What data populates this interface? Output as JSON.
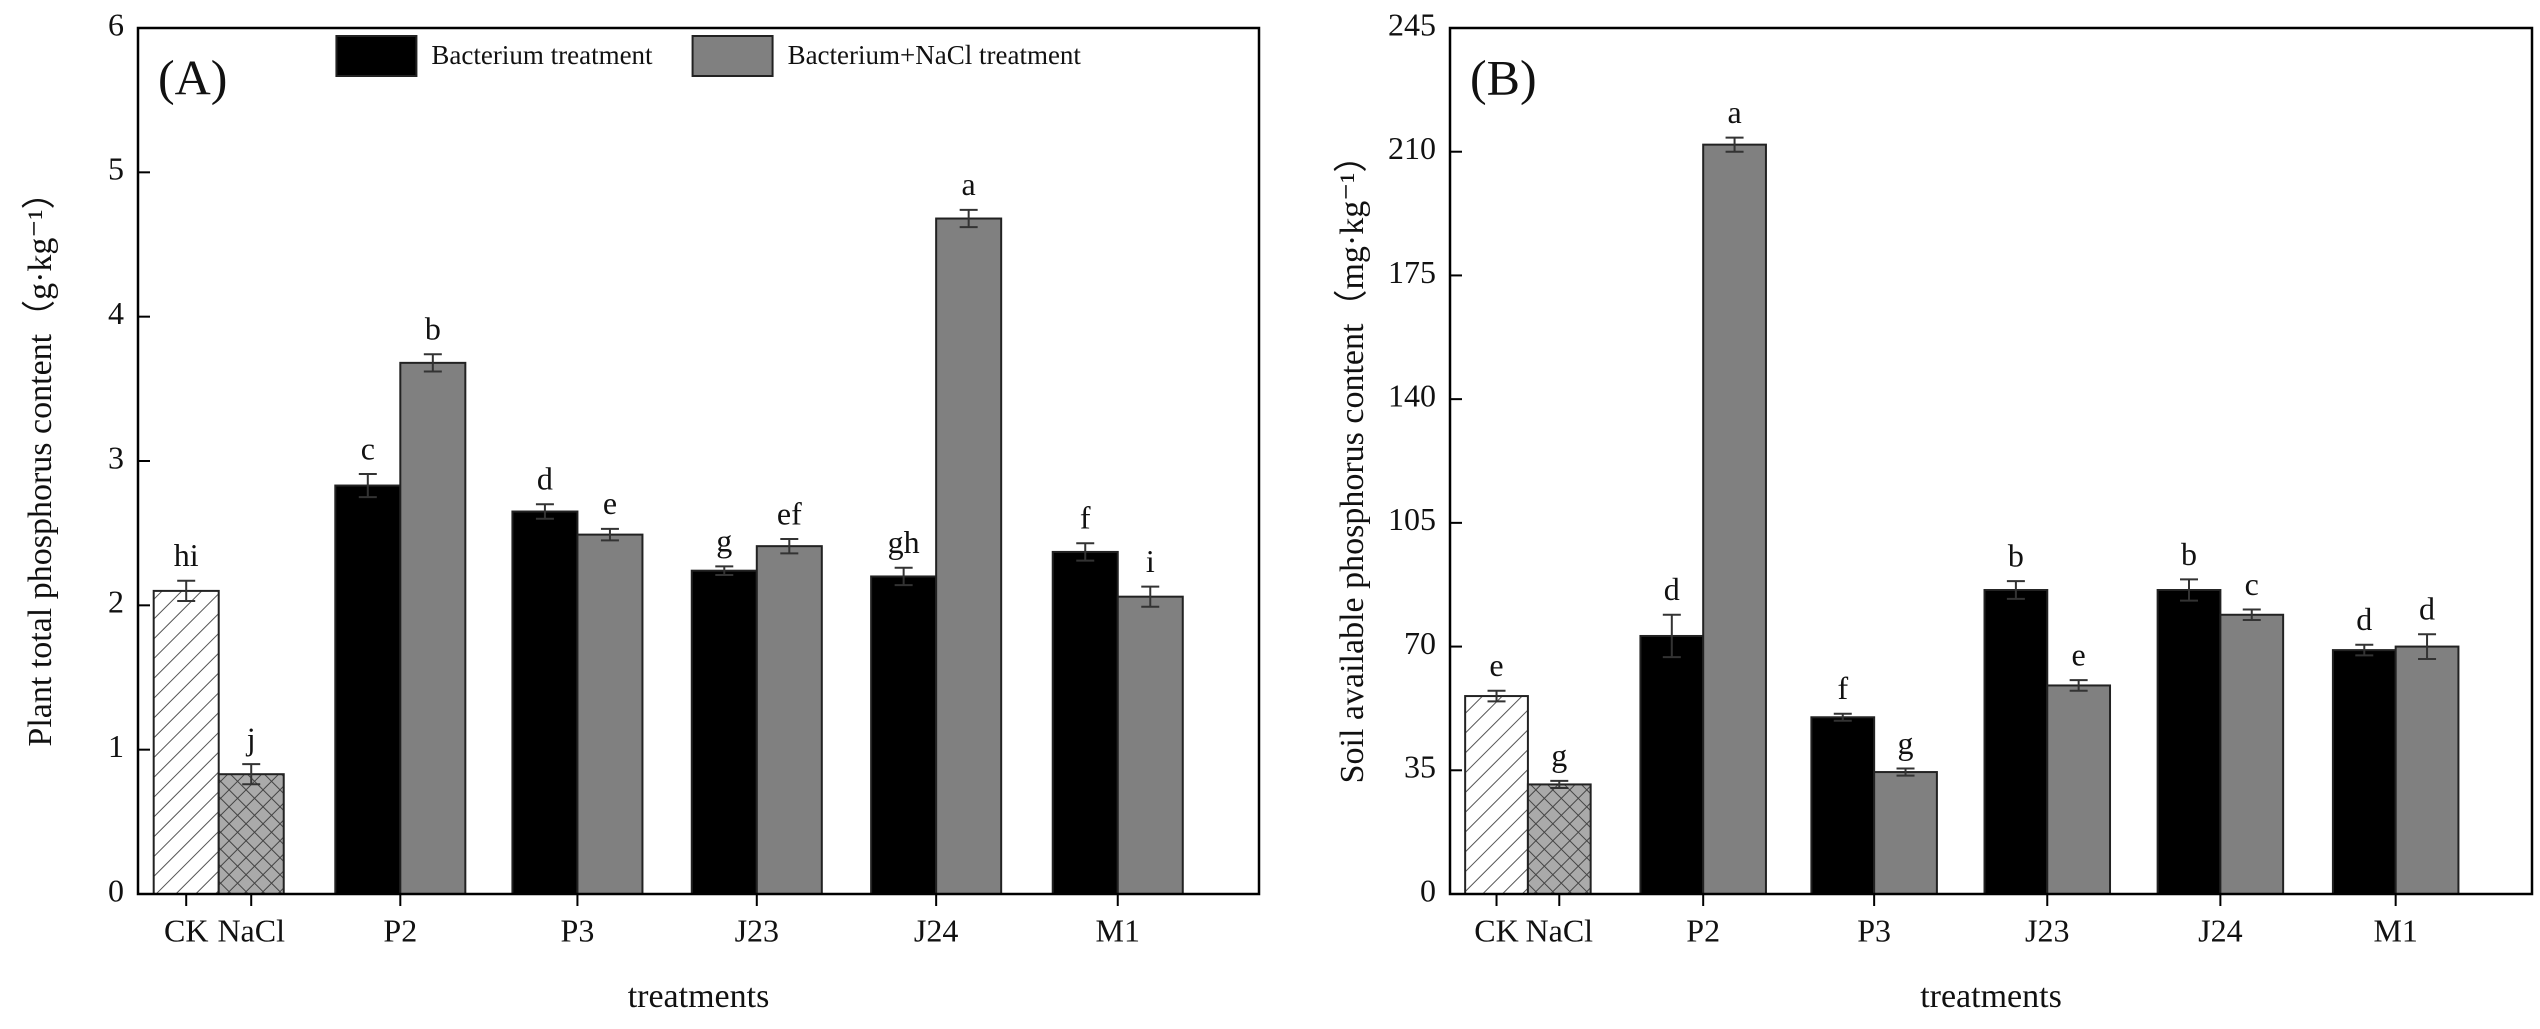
{
  "chart_data": [
    {
      "type": "bar",
      "panel_label": "(A)",
      "ylabel": "Plant total phosphorus content（g·kg⁻¹）",
      "xlabel": "treatments",
      "categories": [
        "CK",
        "NaCl",
        "P2",
        "P3",
        "J23",
        "J24",
        "M1"
      ],
      "ylim": [
        0,
        6
      ],
      "yticks": [
        0,
        1,
        2,
        3,
        4,
        5,
        6
      ],
      "legend": "top",
      "series": [
        {
          "color": "#ffffff",
          "values": [
            2.1,
            0.83,
            null,
            null,
            null,
            null,
            null
          ],
          "errors": [
            0.07,
            0.07,
            null,
            null,
            null,
            null,
            null
          ],
          "letters": [
            "hi",
            "j",
            null,
            null,
            null,
            null,
            null
          ]
        },
        {
          "name": "Bacterium treatment",
          "color": "#000000",
          "values": [
            null,
            null,
            2.83,
            2.65,
            2.24,
            2.2,
            2.37
          ],
          "errors": [
            null,
            null,
            0.08,
            0.05,
            0.03,
            0.06,
            0.06
          ],
          "letters": [
            null,
            null,
            "c",
            "d",
            "g",
            "gh",
            "f"
          ]
        },
        {
          "name": "Bacterium+NaCl treatment",
          "color": "#808080",
          "values": [
            null,
            null,
            3.68,
            2.49,
            2.41,
            4.68,
            2.06
          ],
          "errors": [
            null,
            null,
            0.06,
            0.04,
            0.05,
            0.06,
            0.07
          ],
          "letters": [
            null,
            null,
            "b",
            "e",
            "ef",
            "a",
            "i"
          ]
        }
      ]
    },
    {
      "type": "bar",
      "panel_label": "(B)",
      "ylabel": "Soil available phosphorus content（mg·kg⁻¹）",
      "xlabel": "treatments",
      "categories": [
        "CK",
        "NaCl",
        "P2",
        "P3",
        "J23",
        "J24",
        "M1"
      ],
      "ylim": [
        0,
        245
      ],
      "yticks": [
        0,
        35,
        70,
        105,
        140,
        175,
        210,
        245
      ],
      "series": [
        {
          "color": "#ffffff",
          "values": [
            56,
            31,
            null,
            null,
            null,
            null,
            null
          ],
          "errors": [
            1.5,
            1,
            null,
            null,
            null,
            null,
            null
          ],
          "letters": [
            "e",
            "g",
            null,
            null,
            null,
            null,
            null
          ]
        },
        {
          "name": "Bacterium treatment",
          "color": "#000000",
          "values": [
            null,
            null,
            73,
            50,
            86,
            86,
            69
          ],
          "errors": [
            null,
            null,
            6,
            1,
            2.5,
            3,
            1.5
          ],
          "letters": [
            null,
            null,
            "d",
            "f",
            "b",
            "b",
            "d"
          ]
        },
        {
          "name": "Bacterium+NaCl treatment",
          "color": "#808080",
          "values": [
            null,
            null,
            212,
            34.5,
            59,
            79,
            70
          ],
          "errors": [
            null,
            null,
            2,
            1,
            1.5,
            1.5,
            3.5
          ],
          "letters": [
            null,
            null,
            "a",
            "g",
            "e",
            "c",
            "d"
          ]
        }
      ]
    }
  ]
}
